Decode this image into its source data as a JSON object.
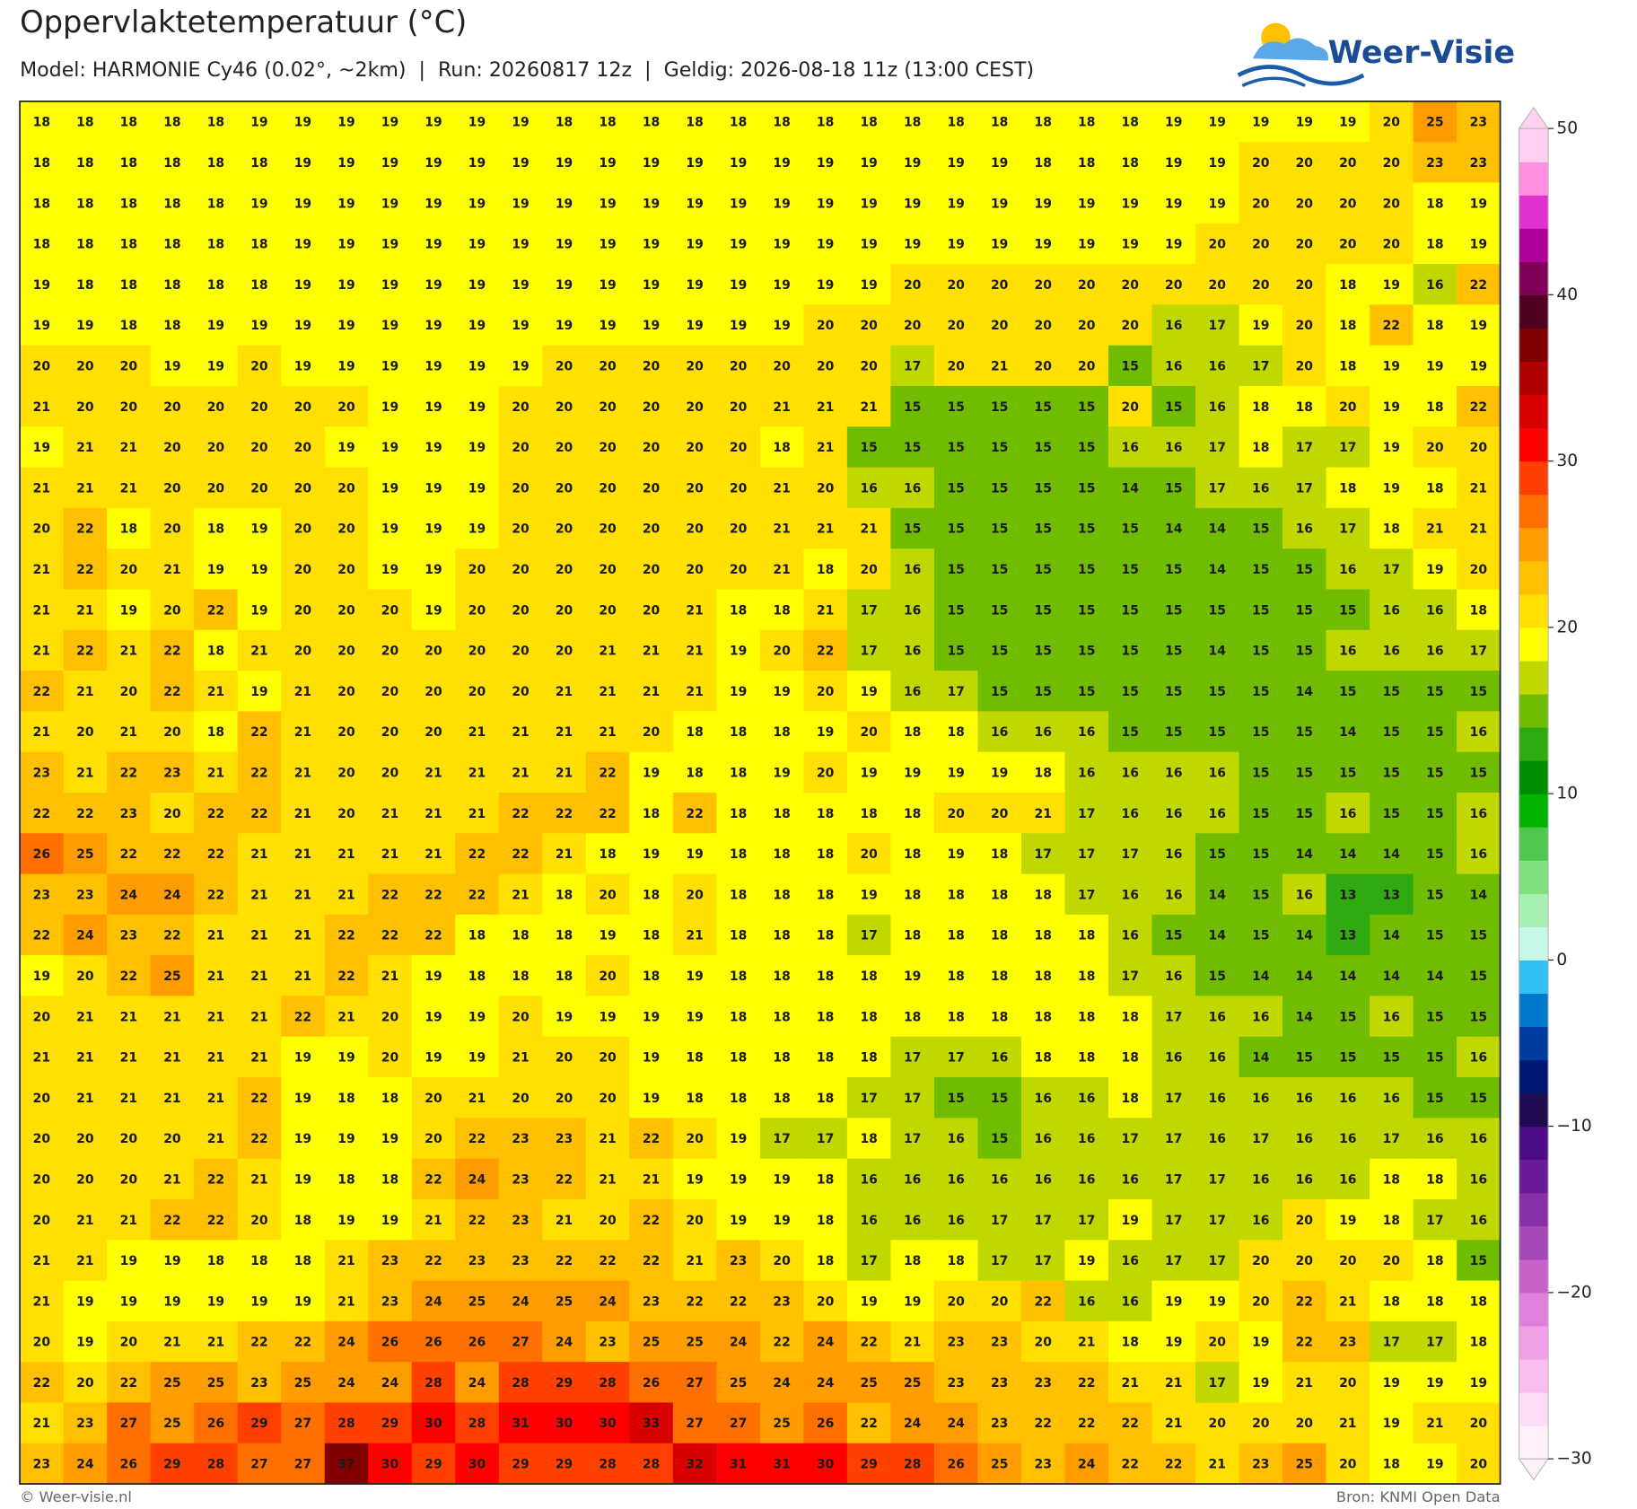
{
  "header": {
    "title": "Oppervlaktetemperatuur (°C)",
    "subtitle": "Model: HARMONIE Cy46 (0.02°, ~2km)  |  Run: 20260817 12z  |  Geldig: 2026-08-18 11z (13:00 CEST)"
  },
  "logo": "Weer-Visie",
  "map": {
    "rows": [
      [
        18,
        18,
        18,
        18,
        18,
        19,
        19,
        19,
        19,
        19,
        19,
        19,
        18,
        18,
        18,
        18,
        18,
        18,
        18,
        18,
        18,
        18,
        18,
        18,
        18,
        18,
        19,
        19,
        19,
        19,
        19,
        20,
        25,
        23
      ],
      [
        18,
        18,
        18,
        18,
        18,
        18,
        19,
        19,
        19,
        19,
        19,
        19,
        19,
        19,
        19,
        19,
        19,
        19,
        19,
        19,
        19,
        19,
        19,
        18,
        18,
        18,
        19,
        19,
        20,
        20,
        20,
        20,
        23,
        23
      ],
      [
        18,
        18,
        18,
        18,
        18,
        19,
        19,
        19,
        19,
        19,
        19,
        19,
        19,
        19,
        19,
        19,
        19,
        19,
        19,
        19,
        19,
        19,
        19,
        19,
        19,
        19,
        19,
        19,
        20,
        20,
        20,
        20,
        18,
        19
      ],
      [
        18,
        18,
        18,
        18,
        18,
        18,
        19,
        19,
        19,
        19,
        19,
        19,
        19,
        19,
        19,
        19,
        19,
        19,
        19,
        19,
        19,
        19,
        19,
        19,
        19,
        19,
        19,
        20,
        20,
        20,
        20,
        20,
        18,
        19
      ],
      [
        19,
        18,
        18,
        18,
        18,
        18,
        19,
        19,
        19,
        19,
        19,
        19,
        19,
        19,
        19,
        19,
        19,
        19,
        19,
        19,
        20,
        20,
        20,
        20,
        20,
        20,
        20,
        20,
        20,
        20,
        18,
        19,
        16,
        22
      ],
      [
        19,
        19,
        18,
        18,
        19,
        19,
        19,
        19,
        19,
        19,
        19,
        19,
        19,
        19,
        19,
        19,
        19,
        19,
        20,
        20,
        20,
        20,
        20,
        20,
        20,
        20,
        16,
        17,
        19,
        20,
        18,
        22,
        18,
        19
      ],
      [
        20,
        20,
        20,
        19,
        19,
        20,
        19,
        19,
        19,
        19,
        19,
        19,
        20,
        20,
        20,
        20,
        20,
        20,
        20,
        20,
        17,
        20,
        21,
        20,
        20,
        15,
        16,
        16,
        17,
        20,
        18,
        19,
        19,
        19
      ],
      [
        21,
        20,
        20,
        20,
        20,
        20,
        20,
        20,
        19,
        19,
        19,
        20,
        20,
        20,
        20,
        20,
        20,
        21,
        21,
        21,
        15,
        15,
        15,
        15,
        15,
        20,
        15,
        16,
        18,
        18,
        20,
        19,
        18,
        22
      ],
      [
        19,
        21,
        21,
        20,
        20,
        20,
        20,
        19,
        19,
        19,
        19,
        20,
        20,
        20,
        20,
        20,
        20,
        18,
        21,
        15,
        15,
        15,
        15,
        15,
        15,
        16,
        16,
        17,
        18,
        17,
        17,
        19,
        20,
        20
      ],
      [
        21,
        21,
        21,
        20,
        20,
        20,
        20,
        20,
        19,
        19,
        19,
        20,
        20,
        20,
        20,
        20,
        20,
        21,
        20,
        16,
        16,
        15,
        15,
        15,
        15,
        14,
        15,
        17,
        16,
        17,
        18,
        19,
        18,
        21
      ],
      [
        20,
        22,
        18,
        20,
        18,
        19,
        20,
        20,
        19,
        19,
        19,
        20,
        20,
        20,
        20,
        20,
        20,
        21,
        21,
        21,
        15,
        15,
        15,
        15,
        15,
        15,
        14,
        14,
        15,
        16,
        17,
        18,
        21,
        21
      ],
      [
        21,
        22,
        20,
        21,
        19,
        19,
        20,
        20,
        19,
        19,
        20,
        20,
        20,
        20,
        20,
        20,
        20,
        21,
        18,
        20,
        16,
        15,
        15,
        15,
        15,
        15,
        15,
        14,
        15,
        15,
        16,
        17,
        19,
        20
      ],
      [
        21,
        21,
        19,
        20,
        22,
        19,
        20,
        20,
        20,
        19,
        20,
        20,
        20,
        20,
        20,
        21,
        18,
        18,
        21,
        17,
        16,
        15,
        15,
        15,
        15,
        15,
        15,
        15,
        15,
        15,
        15,
        16,
        16,
        18
      ],
      [
        21,
        22,
        21,
        22,
        18,
        21,
        20,
        20,
        20,
        20,
        20,
        20,
        20,
        21,
        21,
        21,
        19,
        20,
        22,
        17,
        16,
        15,
        15,
        15,
        15,
        15,
        15,
        14,
        15,
        15,
        16,
        16,
        16,
        17
      ],
      [
        22,
        21,
        20,
        22,
        21,
        19,
        21,
        20,
        20,
        20,
        20,
        20,
        21,
        21,
        21,
        21,
        19,
        19,
        20,
        19,
        16,
        17,
        15,
        15,
        15,
        15,
        15,
        15,
        15,
        14,
        15,
        15,
        15,
        15
      ],
      [
        21,
        20,
        21,
        20,
        18,
        22,
        21,
        20,
        20,
        20,
        21,
        21,
        21,
        21,
        20,
        18,
        18,
        18,
        19,
        20,
        18,
        18,
        16,
        16,
        16,
        15,
        15,
        15,
        15,
        15,
        14,
        15,
        15,
        16
      ],
      [
        23,
        21,
        22,
        23,
        21,
        22,
        21,
        20,
        20,
        21,
        21,
        21,
        21,
        22,
        19,
        18,
        18,
        19,
        20,
        19,
        19,
        19,
        19,
        18,
        16,
        16,
        16,
        16,
        15,
        15,
        15,
        15,
        15,
        15
      ],
      [
        22,
        22,
        23,
        20,
        22,
        22,
        21,
        20,
        21,
        21,
        21,
        22,
        22,
        22,
        18,
        22,
        18,
        18,
        18,
        18,
        18,
        20,
        20,
        21,
        17,
        16,
        16,
        16,
        15,
        15,
        16,
        15,
        15,
        16
      ],
      [
        26,
        25,
        22,
        22,
        22,
        21,
        21,
        21,
        21,
        21,
        22,
        22,
        21,
        18,
        19,
        19,
        18,
        18,
        18,
        20,
        18,
        19,
        18,
        17,
        17,
        17,
        16,
        15,
        15,
        14,
        14,
        14,
        15,
        16
      ],
      [
        23,
        23,
        24,
        24,
        22,
        21,
        21,
        21,
        22,
        22,
        22,
        21,
        18,
        20,
        18,
        20,
        18,
        18,
        18,
        19,
        18,
        18,
        18,
        18,
        17,
        16,
        16,
        14,
        15,
        16,
        13,
        13,
        15,
        14
      ],
      [
        22,
        24,
        23,
        22,
        21,
        21,
        21,
        22,
        22,
        22,
        18,
        18,
        18,
        19,
        18,
        21,
        18,
        18,
        18,
        17,
        18,
        18,
        18,
        18,
        18,
        16,
        15,
        14,
        15,
        14,
        13,
        14,
        15,
        15
      ],
      [
        19,
        20,
        22,
        25,
        21,
        21,
        21,
        22,
        21,
        19,
        18,
        18,
        18,
        20,
        18,
        19,
        18,
        18,
        18,
        18,
        19,
        18,
        18,
        18,
        18,
        17,
        16,
        15,
        14,
        14,
        14,
        14,
        14,
        15
      ],
      [
        20,
        21,
        21,
        21,
        21,
        21,
        22,
        21,
        20,
        19,
        19,
        20,
        19,
        19,
        19,
        19,
        18,
        18,
        18,
        18,
        18,
        18,
        18,
        18,
        18,
        18,
        17,
        16,
        16,
        14,
        15,
        16,
        15,
        15
      ],
      [
        21,
        21,
        21,
        21,
        21,
        21,
        19,
        19,
        20,
        19,
        19,
        21,
        20,
        20,
        19,
        18,
        18,
        18,
        18,
        18,
        17,
        17,
        16,
        18,
        18,
        18,
        16,
        16,
        14,
        15,
        15,
        15,
        15,
        16
      ],
      [
        20,
        21,
        21,
        21,
        21,
        22,
        19,
        18,
        18,
        20,
        21,
        20,
        20,
        20,
        19,
        18,
        18,
        18,
        18,
        17,
        17,
        15,
        15,
        16,
        16,
        18,
        17,
        16,
        16,
        16,
        16,
        16,
        15,
        15
      ],
      [
        20,
        20,
        20,
        20,
        21,
        22,
        19,
        19,
        19,
        20,
        22,
        23,
        23,
        21,
        22,
        20,
        19,
        17,
        17,
        18,
        17,
        16,
        15,
        16,
        16,
        17,
        17,
        16,
        17,
        16,
        16,
        17,
        16,
        16
      ],
      [
        20,
        20,
        20,
        21,
        22,
        21,
        19,
        18,
        18,
        22,
        24,
        23,
        22,
        21,
        21,
        19,
        19,
        19,
        18,
        16,
        16,
        16,
        16,
        16,
        16,
        16,
        17,
        17,
        16,
        16,
        16,
        18,
        18,
        16
      ],
      [
        20,
        21,
        21,
        22,
        22,
        20,
        18,
        19,
        19,
        21,
        22,
        23,
        21,
        20,
        22,
        20,
        19,
        19,
        18,
        16,
        16,
        16,
        17,
        17,
        17,
        19,
        17,
        17,
        16,
        20,
        19,
        18,
        17,
        16
      ],
      [
        21,
        21,
        19,
        19,
        18,
        18,
        18,
        21,
        23,
        22,
        23,
        23,
        22,
        22,
        22,
        21,
        23,
        20,
        18,
        17,
        18,
        18,
        17,
        17,
        19,
        16,
        17,
        17,
        20,
        20,
        20,
        20,
        18,
        15
      ],
      [
        21,
        19,
        19,
        19,
        19,
        19,
        19,
        21,
        23,
        24,
        25,
        24,
        25,
        24,
        23,
        22,
        22,
        23,
        20,
        19,
        19,
        20,
        20,
        22,
        16,
        16,
        19,
        19,
        20,
        22,
        21,
        18,
        18,
        18
      ],
      [
        20,
        19,
        20,
        21,
        21,
        22,
        22,
        24,
        26,
        26,
        26,
        27,
        24,
        23,
        25,
        25,
        24,
        22,
        24,
        22,
        21,
        23,
        23,
        20,
        21,
        18,
        19,
        20,
        19,
        22,
        23,
        17,
        17,
        18
      ],
      [
        22,
        20,
        22,
        25,
        25,
        23,
        25,
        24,
        24,
        28,
        24,
        28,
        29,
        28,
        26,
        27,
        25,
        24,
        24,
        25,
        25,
        23,
        23,
        23,
        22,
        21,
        21,
        17,
        19,
        21,
        20,
        19,
        19,
        19
      ],
      [
        21,
        23,
        27,
        25,
        26,
        29,
        27,
        28,
        29,
        30,
        28,
        31,
        30,
        30,
        33,
        27,
        27,
        25,
        26,
        22,
        24,
        24,
        23,
        22,
        22,
        22,
        21,
        20,
        20,
        20,
        21,
        19,
        21,
        20
      ],
      [
        23,
        24,
        26,
        29,
        28,
        27,
        27,
        37,
        30,
        29,
        30,
        29,
        29,
        28,
        28,
        32,
        31,
        31,
        30,
        29,
        28,
        26,
        25,
        23,
        24,
        22,
        22,
        21,
        23,
        25,
        20,
        18,
        19,
        20
      ]
    ]
  },
  "colorbar": {
    "lim": [
      -30,
      50
    ],
    "ticks": [
      {
        "value": -30,
        "label": "−30"
      },
      {
        "value": -20,
        "label": "−20"
      },
      {
        "value": -10,
        "label": "−10"
      },
      0,
      10,
      20,
      30,
      40,
      50
    ],
    "colors": [
      "#fff0fb",
      "#fddcf6",
      "#f9bdee",
      "#f0a0e6",
      "#e080da",
      "#c862c8",
      "#a848b8",
      "#8830a8",
      "#6a1c98",
      "#4c0c88",
      "#200a50",
      "#001870",
      "#003ca0",
      "#0078cc",
      "#30c0f4",
      "#c8f8e8",
      "#a8f0b0",
      "#80e080",
      "#50c850",
      "#00b400",
      "#008c00",
      "#30aa10",
      "#70bc00",
      "#c0d800",
      "#ffff00",
      "#ffe000",
      "#ffc000",
      "#ff9c00",
      "#ff7000",
      "#ff4000",
      "#ff0000",
      "#d80000",
      "#b00000",
      "#800000",
      "#500020",
      "#80005a",
      "#b0009a",
      "#e030d0",
      "#ff90e0",
      "#ffd0f0"
    ]
  },
  "footer": {
    "left": "© Weer-visie.nl",
    "right": "Bron: KNMI Open Data"
  }
}
